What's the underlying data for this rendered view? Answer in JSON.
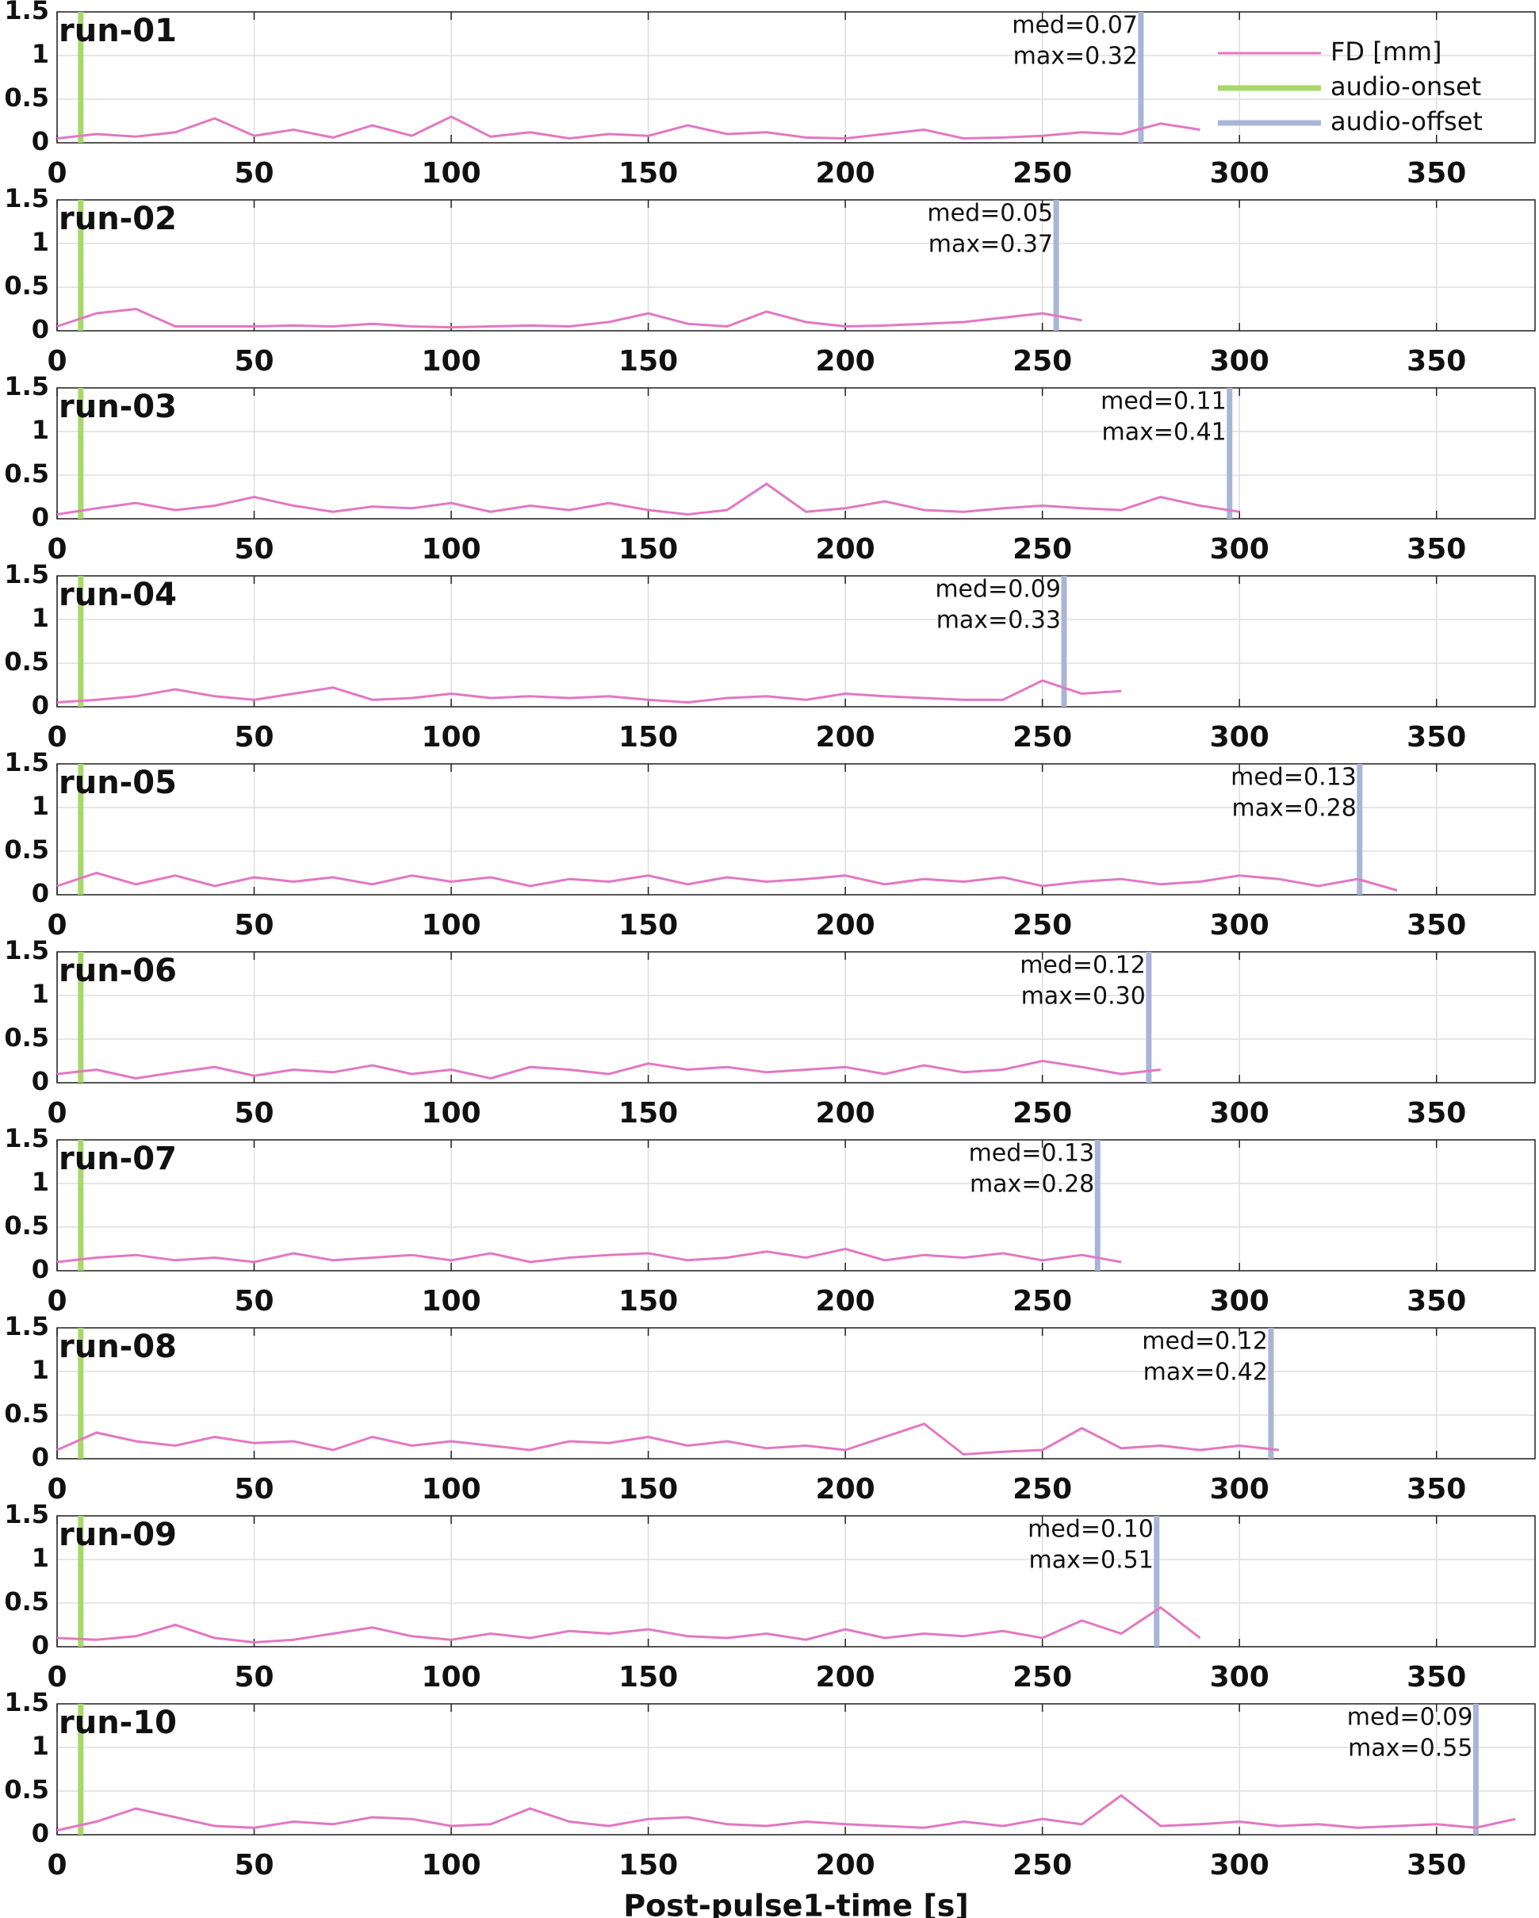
{
  "chart_data": [
    {
      "type": "line",
      "title": "run-01",
      "x": [
        0,
        10,
        20,
        30,
        40,
        50,
        60,
        70,
        80,
        90,
        100,
        110,
        120,
        130,
        140,
        150,
        160,
        170,
        180,
        190,
        200,
        210,
        220,
        230,
        240,
        250,
        260,
        270,
        280,
        290,
        300,
        310,
        320,
        330,
        340,
        350,
        360,
        370
      ],
      "series": [
        {
          "name": "FD [mm]",
          "color": "#e377c2",
          "values": [
            0.05,
            0.1,
            0.07,
            0.12,
            0.28,
            0.08,
            0.15,
            0.06,
            0.2,
            0.08,
            0.3,
            0.07,
            0.12,
            0.05,
            0.1,
            0.08,
            0.2,
            0.1,
            0.12,
            0.06,
            0.05,
            0.1,
            0.15,
            0.05,
            0.06,
            0.08,
            0.12,
            0.1,
            0.22,
            0.15,
            null,
            null,
            null,
            null,
            null,
            null,
            null,
            null
          ]
        }
      ],
      "markers": [
        {
          "name": "audio-onset",
          "color": "#a6d96a",
          "x": 6
        },
        {
          "name": "audio-offset",
          "color": "#a9b5d6",
          "x": 275
        }
      ],
      "annotations": [
        "med=0.07",
        "max=0.32"
      ],
      "legend": "upper right",
      "xlim": [
        0,
        375
      ],
      "xticks": [
        0,
        50,
        100,
        150,
        200,
        250,
        300,
        350
      ],
      "ylim": [
        0,
        1.5
      ],
      "yticks": [
        0,
        0.5,
        1,
        1.5
      ],
      "grid": true
    },
    {
      "type": "line",
      "title": "run-02",
      "x": [
        0,
        10,
        20,
        30,
        40,
        50,
        60,
        70,
        80,
        90,
        100,
        110,
        120,
        130,
        140,
        150,
        160,
        170,
        180,
        190,
        200,
        210,
        220,
        230,
        240,
        250,
        260,
        270,
        280,
        290,
        300,
        310,
        320,
        330,
        340,
        350,
        360,
        370
      ],
      "series": [
        {
          "color": "#e377c2",
          "values": [
            0.05,
            0.2,
            0.25,
            0.05,
            0.05,
            0.05,
            0.06,
            0.05,
            0.08,
            0.05,
            0.04,
            0.05,
            0.06,
            0.05,
            0.1,
            0.2,
            0.08,
            0.05,
            0.22,
            0.1,
            0.05,
            0.06,
            0.08,
            0.1,
            0.15,
            0.2,
            0.12,
            null,
            null,
            null,
            null,
            null,
            null,
            null,
            null,
            null,
            null,
            null
          ]
        }
      ],
      "markers": [
        {
          "color": "#a6d96a",
          "x": 6
        },
        {
          "color": "#a9b5d6",
          "x": 253.5
        }
      ],
      "annotations": [
        "med=0.05",
        "max=0.37"
      ],
      "xlim": [
        0,
        375
      ],
      "xticks": [
        0,
        50,
        100,
        150,
        200,
        250,
        300,
        350
      ],
      "ylim": [
        0,
        1.5
      ],
      "yticks": [
        0,
        0.5,
        1,
        1.5
      ],
      "grid": true
    },
    {
      "type": "line",
      "title": "run-03",
      "x": [
        0,
        10,
        20,
        30,
        40,
        50,
        60,
        70,
        80,
        90,
        100,
        110,
        120,
        130,
        140,
        150,
        160,
        170,
        180,
        190,
        200,
        210,
        220,
        230,
        240,
        250,
        260,
        270,
        280,
        290,
        300,
        310,
        320,
        330,
        340,
        350,
        360,
        370
      ],
      "series": [
        {
          "color": "#e377c2",
          "values": [
            0.05,
            0.12,
            0.18,
            0.1,
            0.15,
            0.25,
            0.15,
            0.08,
            0.14,
            0.12,
            0.18,
            0.08,
            0.15,
            0.1,
            0.18,
            0.1,
            0.05,
            0.1,
            0.4,
            0.08,
            0.12,
            0.2,
            0.1,
            0.08,
            0.12,
            0.15,
            0.12,
            0.1,
            0.25,
            0.15,
            0.08,
            null,
            null,
            null,
            null,
            null,
            null,
            null
          ]
        }
      ],
      "markers": [
        {
          "color": "#a6d96a",
          "x": 6
        },
        {
          "color": "#a9b5d6",
          "x": 297.5
        }
      ],
      "annotations": [
        "med=0.11",
        "max=0.41"
      ],
      "xlim": [
        0,
        375
      ],
      "xticks": [
        0,
        50,
        100,
        150,
        200,
        250,
        300,
        350
      ],
      "ylim": [
        0,
        1.5
      ],
      "yticks": [
        0,
        0.5,
        1,
        1.5
      ],
      "grid": true
    },
    {
      "type": "line",
      "title": "run-04",
      "x": [
        0,
        10,
        20,
        30,
        40,
        50,
        60,
        70,
        80,
        90,
        100,
        110,
        120,
        130,
        140,
        150,
        160,
        170,
        180,
        190,
        200,
        210,
        220,
        230,
        240,
        250,
        260,
        270,
        280,
        290,
        300,
        310,
        320,
        330,
        340,
        350,
        360,
        370
      ],
      "series": [
        {
          "color": "#e377c2",
          "values": [
            0.05,
            0.08,
            0.12,
            0.2,
            0.12,
            0.08,
            0.15,
            0.22,
            0.08,
            0.1,
            0.15,
            0.1,
            0.12,
            0.1,
            0.12,
            0.08,
            0.05,
            0.1,
            0.12,
            0.08,
            0.15,
            0.12,
            0.1,
            0.08,
            0.08,
            0.3,
            0.15,
            0.18,
            null,
            null,
            null,
            null,
            null,
            null,
            null,
            null,
            null,
            null
          ]
        }
      ],
      "markers": [
        {
          "color": "#a6d96a",
          "x": 6
        },
        {
          "color": "#a9b5d6",
          "x": 255.5
        }
      ],
      "annotations": [
        "med=0.09",
        "max=0.33"
      ],
      "xlim": [
        0,
        375
      ],
      "xticks": [
        0,
        50,
        100,
        150,
        200,
        250,
        300,
        350
      ],
      "ylim": [
        0,
        1.5
      ],
      "yticks": [
        0,
        0.5,
        1,
        1.5
      ],
      "grid": true
    },
    {
      "type": "line",
      "title": "run-05",
      "x": [
        0,
        10,
        20,
        30,
        40,
        50,
        60,
        70,
        80,
        90,
        100,
        110,
        120,
        130,
        140,
        150,
        160,
        170,
        180,
        190,
        200,
        210,
        220,
        230,
        240,
        250,
        260,
        270,
        280,
        290,
        300,
        310,
        320,
        330,
        340,
        350,
        360,
        370
      ],
      "series": [
        {
          "color": "#e377c2",
          "values": [
            0.1,
            0.25,
            0.12,
            0.22,
            0.1,
            0.2,
            0.15,
            0.2,
            0.12,
            0.22,
            0.15,
            0.2,
            0.1,
            0.18,
            0.15,
            0.22,
            0.12,
            0.2,
            0.15,
            0.18,
            0.22,
            0.12,
            0.18,
            0.15,
            0.2,
            0.1,
            0.15,
            0.18,
            0.12,
            0.15,
            0.22,
            0.18,
            0.1,
            0.18,
            0.05,
            null,
            null,
            null
          ]
        }
      ],
      "markers": [
        {
          "color": "#a6d96a",
          "x": 6
        },
        {
          "color": "#a9b5d6",
          "x": 330.5
        }
      ],
      "annotations": [
        "med=0.13",
        "max=0.28"
      ],
      "xlim": [
        0,
        375
      ],
      "xticks": [
        0,
        50,
        100,
        150,
        200,
        250,
        300,
        350
      ],
      "ylim": [
        0,
        1.5
      ],
      "yticks": [
        0,
        0.5,
        1,
        1.5
      ],
      "grid": true
    },
    {
      "type": "line",
      "title": "run-06",
      "x": [
        0,
        10,
        20,
        30,
        40,
        50,
        60,
        70,
        80,
        90,
        100,
        110,
        120,
        130,
        140,
        150,
        160,
        170,
        180,
        190,
        200,
        210,
        220,
        230,
        240,
        250,
        260,
        270,
        280,
        290,
        300,
        310,
        320,
        330,
        340,
        350,
        360,
        370
      ],
      "series": [
        {
          "color": "#e377c2",
          "values": [
            0.1,
            0.15,
            0.05,
            0.12,
            0.18,
            0.08,
            0.15,
            0.12,
            0.2,
            0.1,
            0.15,
            0.05,
            0.18,
            0.15,
            0.1,
            0.22,
            0.15,
            0.18,
            0.12,
            0.15,
            0.18,
            0.1,
            0.2,
            0.12,
            0.15,
            0.25,
            0.18,
            0.1,
            0.15,
            null,
            null,
            null,
            null,
            null,
            null,
            null,
            null,
            null
          ]
        }
      ],
      "markers": [
        {
          "color": "#a6d96a",
          "x": 6
        },
        {
          "color": "#a9b5d6",
          "x": 277
        }
      ],
      "annotations": [
        "med=0.12",
        "max=0.30"
      ],
      "xlim": [
        0,
        375
      ],
      "xticks": [
        0,
        50,
        100,
        150,
        200,
        250,
        300,
        350
      ],
      "ylim": [
        0,
        1.5
      ],
      "yticks": [
        0,
        0.5,
        1,
        1.5
      ],
      "grid": true
    },
    {
      "type": "line",
      "title": "run-07",
      "x": [
        0,
        10,
        20,
        30,
        40,
        50,
        60,
        70,
        80,
        90,
        100,
        110,
        120,
        130,
        140,
        150,
        160,
        170,
        180,
        190,
        200,
        210,
        220,
        230,
        240,
        250,
        260,
        270,
        280,
        290,
        300,
        310,
        320,
        330,
        340,
        350,
        360,
        370
      ],
      "series": [
        {
          "color": "#e377c2",
          "values": [
            0.1,
            0.15,
            0.18,
            0.12,
            0.15,
            0.1,
            0.2,
            0.12,
            0.15,
            0.18,
            0.12,
            0.2,
            0.1,
            0.15,
            0.18,
            0.2,
            0.12,
            0.15,
            0.22,
            0.15,
            0.25,
            0.12,
            0.18,
            0.15,
            0.2,
            0.12,
            0.18,
            0.1,
            null,
            null,
            null,
            null,
            null,
            null,
            null,
            null,
            null,
            null
          ]
        }
      ],
      "markers": [
        {
          "color": "#a6d96a",
          "x": 6
        },
        {
          "color": "#a9b5d6",
          "x": 264
        }
      ],
      "annotations": [
        "med=0.13",
        "max=0.28"
      ],
      "xlim": [
        0,
        375
      ],
      "xticks": [
        0,
        50,
        100,
        150,
        200,
        250,
        300,
        350
      ],
      "ylim": [
        0,
        1.5
      ],
      "yticks": [
        0,
        0.5,
        1,
        1.5
      ],
      "grid": true
    },
    {
      "type": "line",
      "title": "run-08",
      "x": [
        0,
        10,
        20,
        30,
        40,
        50,
        60,
        70,
        80,
        90,
        100,
        110,
        120,
        130,
        140,
        150,
        160,
        170,
        180,
        190,
        200,
        210,
        220,
        230,
        240,
        250,
        260,
        270,
        280,
        290,
        300,
        310,
        320,
        330,
        340,
        350,
        360,
        370
      ],
      "series": [
        {
          "color": "#e377c2",
          "values": [
            0.1,
            0.3,
            0.2,
            0.15,
            0.25,
            0.18,
            0.2,
            0.1,
            0.25,
            0.15,
            0.2,
            0.15,
            0.1,
            0.2,
            0.18,
            0.25,
            0.15,
            0.2,
            0.12,
            0.15,
            0.1,
            0.25,
            0.4,
            0.05,
            0.08,
            0.1,
            0.35,
            0.12,
            0.15,
            0.1,
            0.15,
            0.1,
            null,
            null,
            null,
            null,
            null,
            null
          ]
        }
      ],
      "markers": [
        {
          "color": "#a6d96a",
          "x": 6
        },
        {
          "color": "#a9b5d6",
          "x": 308
        }
      ],
      "annotations": [
        "med=0.12",
        "max=0.42"
      ],
      "xlim": [
        0,
        375
      ],
      "xticks": [
        0,
        50,
        100,
        150,
        200,
        250,
        300,
        350
      ],
      "ylim": [
        0,
        1.5
      ],
      "yticks": [
        0,
        0.5,
        1,
        1.5
      ],
      "grid": true
    },
    {
      "type": "line",
      "title": "run-09",
      "x": [
        0,
        10,
        20,
        30,
        40,
        50,
        60,
        70,
        80,
        90,
        100,
        110,
        120,
        130,
        140,
        150,
        160,
        170,
        180,
        190,
        200,
        210,
        220,
        230,
        240,
        250,
        260,
        270,
        280,
        290,
        300,
        310,
        320,
        330,
        340,
        350,
        360,
        370
      ],
      "series": [
        {
          "color": "#e377c2",
          "values": [
            0.1,
            0.08,
            0.12,
            0.25,
            0.1,
            0.05,
            0.08,
            0.15,
            0.22,
            0.12,
            0.08,
            0.15,
            0.1,
            0.18,
            0.15,
            0.2,
            0.12,
            0.1,
            0.15,
            0.08,
            0.2,
            0.1,
            0.15,
            0.12,
            0.18,
            0.1,
            0.3,
            0.15,
            0.45,
            0.1,
            null,
            null,
            null,
            null,
            null,
            null,
            null,
            null
          ]
        }
      ],
      "markers": [
        {
          "color": "#a6d96a",
          "x": 6
        },
        {
          "color": "#a9b5d6",
          "x": 279
        }
      ],
      "annotations": [
        "med=0.10",
        "max=0.51"
      ],
      "xlim": [
        0,
        375
      ],
      "xticks": [
        0,
        50,
        100,
        150,
        200,
        250,
        300,
        350
      ],
      "ylim": [
        0,
        1.5
      ],
      "yticks": [
        0,
        0.5,
        1,
        1.5
      ],
      "grid": true
    },
    {
      "type": "line",
      "title": "run-10",
      "x": [
        0,
        10,
        20,
        30,
        40,
        50,
        60,
        70,
        80,
        90,
        100,
        110,
        120,
        130,
        140,
        150,
        160,
        170,
        180,
        190,
        200,
        210,
        220,
        230,
        240,
        250,
        260,
        270,
        280,
        290,
        300,
        310,
        320,
        330,
        340,
        350,
        360,
        370
      ],
      "series": [
        {
          "color": "#e377c2",
          "values": [
            0.05,
            0.15,
            0.3,
            0.2,
            0.1,
            0.08,
            0.15,
            0.12,
            0.2,
            0.18,
            0.1,
            0.12,
            0.3,
            0.15,
            0.1,
            0.18,
            0.2,
            0.12,
            0.1,
            0.15,
            0.12,
            0.1,
            0.08,
            0.15,
            0.1,
            0.18,
            0.12,
            0.45,
            0.1,
            0.12,
            0.15,
            0.1,
            0.12,
            0.08,
            0.1,
            0.12,
            0.08,
            0.18
          ]
        }
      ],
      "markers": [
        {
          "color": "#a6d96a",
          "x": 6
        },
        {
          "color": "#a9b5d6",
          "x": 360
        }
      ],
      "annotations": [
        "med=0.09",
        "max=0.55"
      ],
      "xlabel": "Post-pulse1-time [s]",
      "xlim": [
        0,
        375
      ],
      "xticks": [
        0,
        50,
        100,
        150,
        200,
        250,
        300,
        350
      ],
      "ylim": [
        0,
        1.5
      ],
      "yticks": [
        0,
        0.5,
        1,
        1.5
      ],
      "grid": true
    }
  ]
}
